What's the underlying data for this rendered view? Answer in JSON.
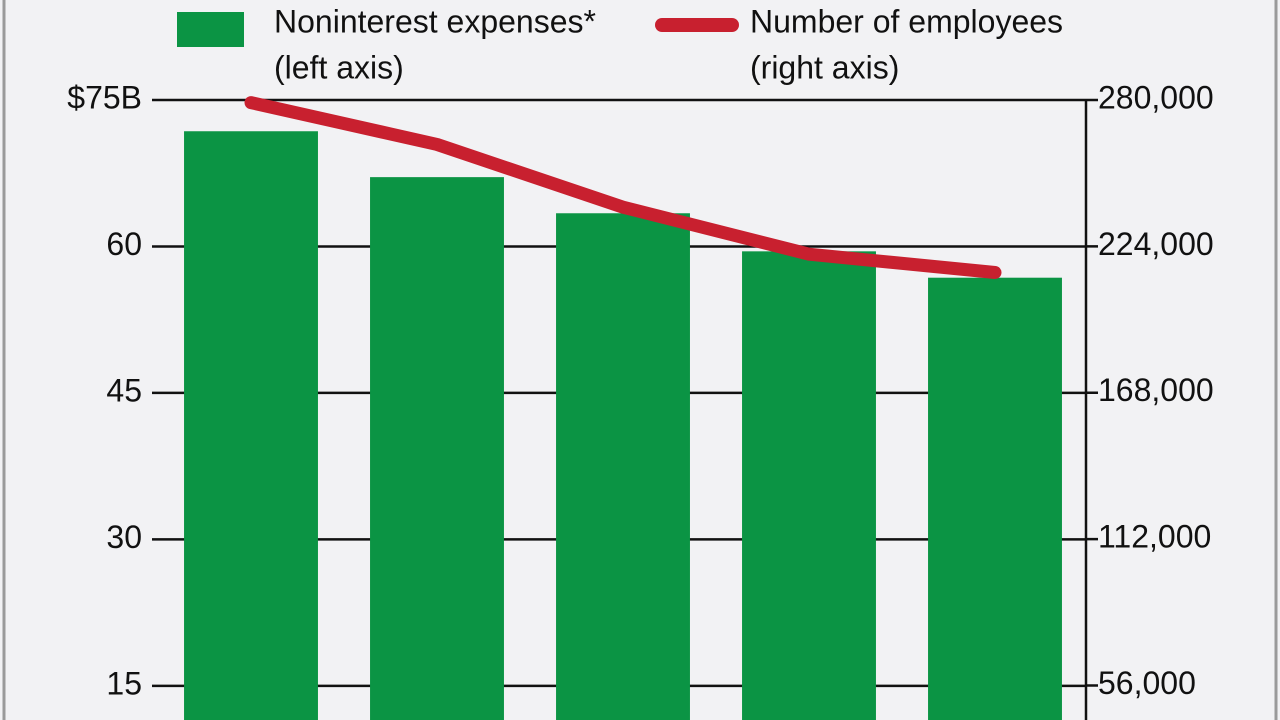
{
  "chart_data": {
    "type": "bar_line",
    "categories": [
      null,
      null,
      null,
      null,
      null
    ],
    "series": [
      {
        "name": "Noninterest expenses*",
        "note": "(left axis)",
        "color": "#0b9444",
        "values": [
          71.8,
          67.1,
          63.4,
          59.5,
          56.8
        ]
      },
      {
        "name": "Number of employees",
        "note": "(right axis)",
        "color": "#c8202f",
        "axis": "y2",
        "values": [
          279000,
          263000,
          239000,
          221000,
          214000
        ]
      }
    ],
    "ylim": [
      11.5,
      75
    ],
    "yticks": [
      {
        "value": 75,
        "label": "$75B"
      },
      60,
      45,
      30,
      15
    ],
    "y2lim": [
      42800,
      280000
    ],
    "y2ticks": [
      {
        "value": 280000,
        "label": "280,000"
      },
      {
        "value": 224000,
        "label": "224,000"
      },
      {
        "value": 168000,
        "label": "168,000"
      },
      {
        "value": 112000,
        "label": "112,000"
      },
      {
        "value": 56000,
        "label": "56,000"
      }
    ],
    "grid": true
  }
}
